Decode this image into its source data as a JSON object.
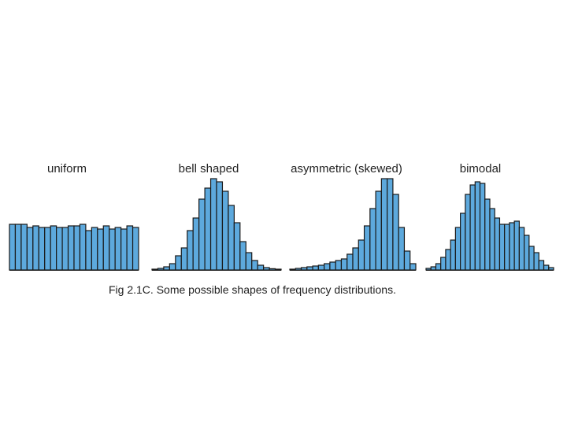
{
  "caption": "Fig 2.1C. Some possible shapes of frequency distributions.",
  "colors": {
    "bar_fill": "#5da9dd",
    "bar_stroke": "#1a1a1a"
  },
  "chart_data": [
    {
      "type": "bar",
      "title": "uniform",
      "values": [
        29,
        29,
        29,
        27,
        28,
        27,
        27,
        28,
        27,
        27,
        28,
        28,
        29,
        25,
        27,
        26,
        28,
        26,
        27,
        26,
        28,
        27
      ],
      "ylim": [
        0,
        60
      ]
    },
    {
      "type": "bar",
      "title": "bell shaped",
      "values": [
        0.5,
        1,
        2,
        4,
        9,
        14,
        25,
        33,
        45,
        52,
        58,
        56,
        50,
        41,
        30,
        18,
        11,
        6,
        3,
        1.5,
        0.8,
        0.3
      ],
      "ylim": [
        0,
        60
      ]
    },
    {
      "type": "bar",
      "title": "asymmetric (skewed)",
      "values": [
        0.5,
        1,
        1.5,
        2,
        2.5,
        3,
        4,
        5,
        6,
        7,
        10,
        14,
        19,
        28,
        39,
        50,
        58,
        58,
        48,
        27,
        12,
        4
      ],
      "ylim": [
        0,
        60
      ]
    },
    {
      "type": "bar",
      "title": "bimodal",
      "values": [
        1,
        2,
        4,
        8,
        13,
        19,
        27,
        36,
        48,
        54,
        56,
        55,
        45,
        39,
        33,
        29,
        29,
        30,
        31,
        27,
        22,
        15,
        11,
        6,
        3,
        1.5
      ],
      "ylim": [
        0,
        60
      ]
    }
  ]
}
